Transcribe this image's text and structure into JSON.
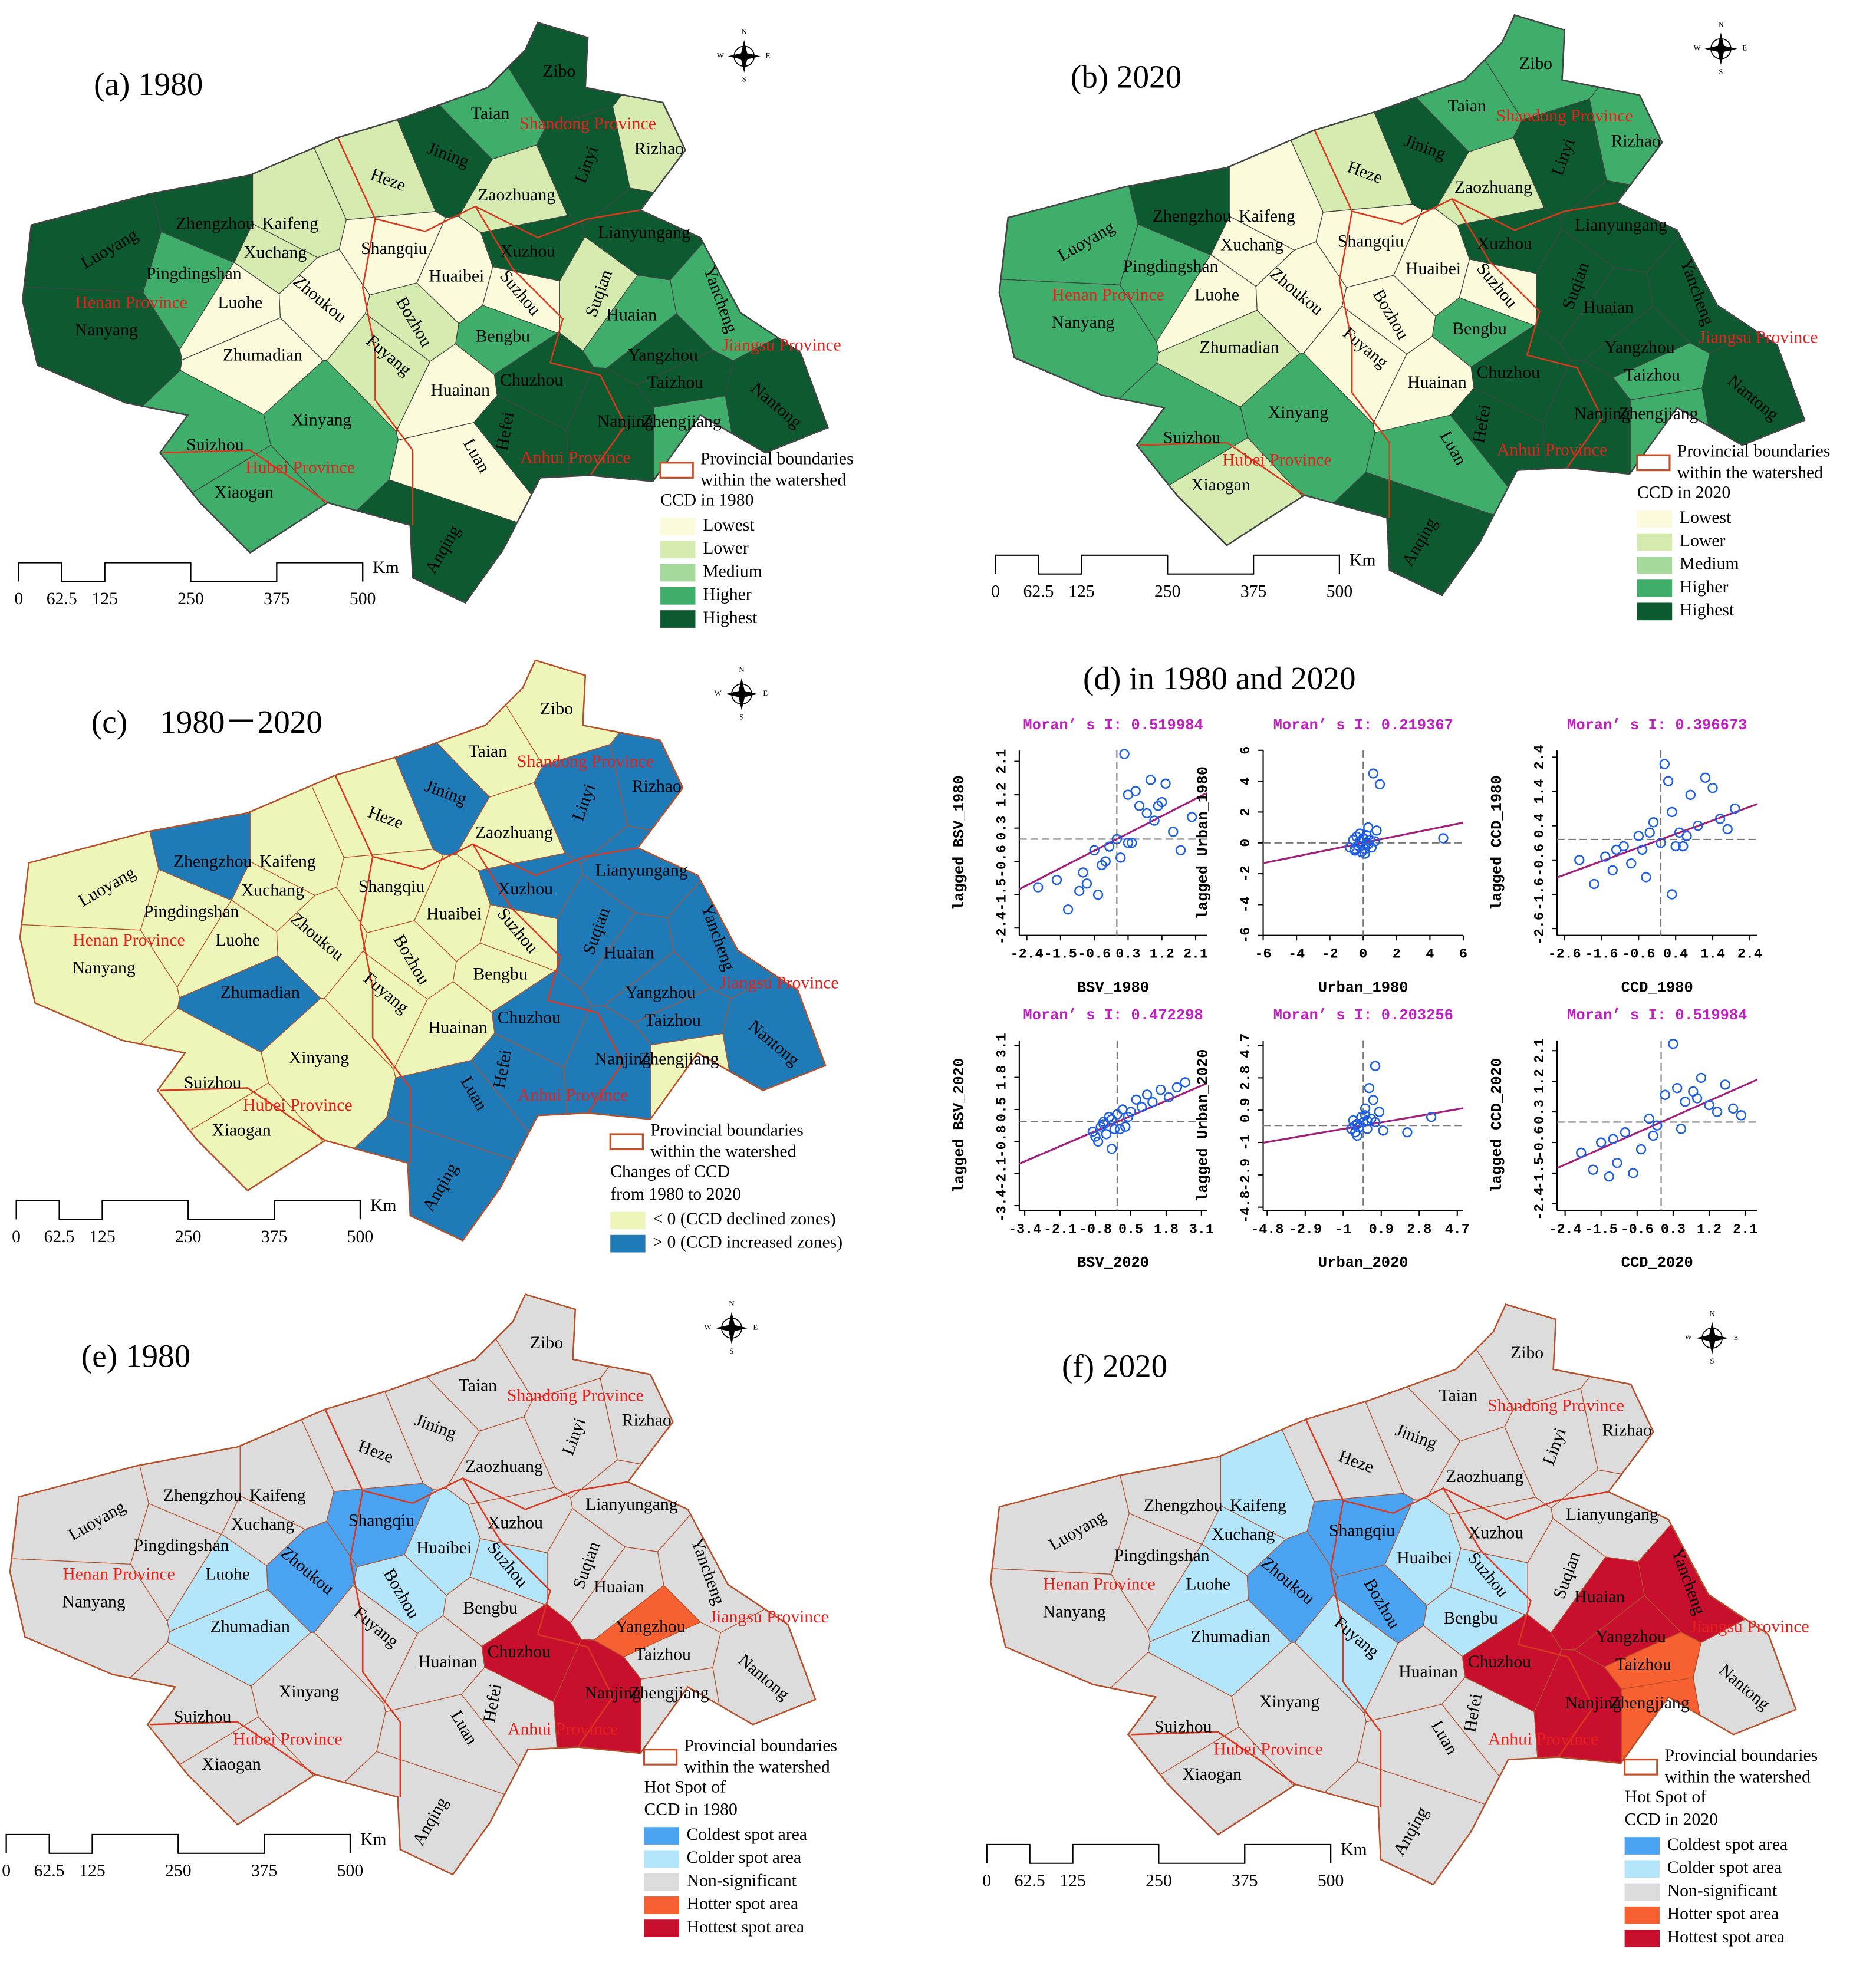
{
  "figure": {
    "cities": [
      "Zibo",
      "Taian",
      "Jining",
      "Heze",
      "Rizhao",
      "Linyi",
      "Zaozhuang",
      "Zhengzhou",
      "Kaifeng",
      "Luoyang",
      "Xuchang",
      "Shangqiu",
      "Xuzhou",
      "Lianyungang",
      "Pingdingshan",
      "Zhoukou",
      "Huaibei",
      "Suzhou",
      "Suqian",
      "Yancheng",
      "Luohe",
      "Bozhou",
      "Huaian",
      "Nanyang",
      "Zhumadian",
      "Fuyang",
      "Bengbu",
      "Yangzhou",
      "Taizhou",
      "Chuzhou",
      "Huainan",
      "Hefei",
      "Nantong",
      "Zhengjiang",
      "Nanjing",
      "Xinyang",
      "Suizhou",
      "Luan",
      "Xiaogan",
      "Anqing"
    ],
    "provinces": [
      "Shandong Province",
      "Henan Province",
      "Jiangsu Province",
      "Anhui Province",
      "Hubei Province"
    ],
    "boundary_legend": [
      "Provincial boundaries",
      "within the watershed"
    ],
    "compass": [
      "N",
      "E",
      "S",
      "W"
    ],
    "scale_bar": {
      "ticks": [
        0,
        62.5,
        125,
        250,
        375,
        500
      ],
      "unit": "Km"
    },
    "maps": [
      {
        "title": "(a) 1980",
        "legend_title": [
          "CCD in 1980"
        ],
        "legend": [
          {
            "label": "Lowest",
            "color": "#fbfbdc"
          },
          {
            "label": "Lower",
            "color": "#d5ebb0"
          },
          {
            "label": "Medium",
            "color": "#a5d89b"
          },
          {
            "label": "Higher",
            "color": "#3fae6a"
          },
          {
            "label": "Highest",
            "color": "#0d5a30"
          }
        ],
        "region_class": [
          4,
          3,
          4,
          1,
          1,
          4,
          1,
          4,
          1,
          4,
          1,
          0,
          4,
          4,
          3,
          0,
          0,
          0,
          1,
          3,
          0,
          1,
          3,
          4,
          0,
          1,
          3,
          4,
          4,
          4,
          0,
          4,
          4,
          3,
          4,
          3,
          3,
          0,
          3,
          4
        ]
      },
      {
        "title": "(b) 2020",
        "legend_title": [
          "CCD in 2020"
        ],
        "legend": [
          {
            "label": "Lowest",
            "color": "#fbfbdc"
          },
          {
            "label": "Lower",
            "color": "#d5ebb0"
          },
          {
            "label": "Medium",
            "color": "#a5d89b"
          },
          {
            "label": "Higher",
            "color": "#3fae6a"
          },
          {
            "label": "Highest",
            "color": "#0d5a30"
          }
        ],
        "region_class": [
          3,
          3,
          4,
          1,
          3,
          4,
          1,
          4,
          0,
          3,
          0,
          0,
          4,
          4,
          3,
          0,
          0,
          0,
          4,
          4,
          0,
          0,
          4,
          3,
          1,
          0,
          3,
          4,
          3,
          4,
          0,
          4,
          4,
          3,
          4,
          3,
          3,
          3,
          1,
          4
        ]
      },
      {
        "title": "(c)    1980－2020",
        "legend_title": [
          "Changes of CCD",
          "from 1980 to 2020"
        ],
        "legend": [
          {
            "label": "< 0 (CCD declined zones)",
            "color": "#eef5b8"
          },
          {
            "label": "> 0 (CCD increased zones)",
            "color": "#1f7ab8"
          }
        ],
        "region_class": [
          0,
          0,
          1,
          0,
          1,
          1,
          0,
          1,
          0,
          0,
          0,
          0,
          1,
          1,
          0,
          0,
          0,
          0,
          1,
          1,
          0,
          0,
          1,
          0,
          1,
          0,
          0,
          1,
          1,
          1,
          0,
          1,
          1,
          0,
          1,
          0,
          0,
          1,
          0,
          1
        ]
      },
      {
        "title": "(e) 1980",
        "legend_title": [
          "Hot Spot of",
          "CCD in 1980"
        ],
        "legend": [
          {
            "label": "Coldest spot area",
            "color": "#4aa3f0"
          },
          {
            "label": "Colder spot area",
            "color": "#b3e5fb"
          },
          {
            "label": "Non-significant",
            "color": "#dcdcdc"
          },
          {
            "label": "Hotter spot area",
            "color": "#f76030"
          },
          {
            "label": "Hottest spot area",
            "color": "#c8102e"
          }
        ],
        "region_class": [
          2,
          2,
          2,
          2,
          2,
          2,
          2,
          2,
          2,
          2,
          2,
          0,
          2,
          2,
          2,
          0,
          1,
          1,
          2,
          2,
          1,
          1,
          2,
          2,
          1,
          2,
          2,
          3,
          2,
          4,
          2,
          2,
          2,
          2,
          4,
          2,
          2,
          2,
          2,
          2
        ]
      },
      {
        "title": "(f) 2020",
        "legend_title": [
          "Hot Spot of",
          "CCD in 2020"
        ],
        "legend": [
          {
            "label": "Coldest spot area",
            "color": "#4aa3f0"
          },
          {
            "label": "Colder spot area",
            "color": "#b3e5fb"
          },
          {
            "label": "Non-significant",
            "color": "#dcdcdc"
          },
          {
            "label": "Hotter spot area",
            "color": "#f76030"
          },
          {
            "label": "Hottest spot area",
            "color": "#c8102e"
          }
        ],
        "region_class": [
          2,
          2,
          2,
          2,
          2,
          2,
          2,
          2,
          1,
          2,
          1,
          0,
          2,
          2,
          2,
          0,
          1,
          1,
          2,
          4,
          1,
          0,
          4,
          2,
          1,
          1,
          1,
          4,
          3,
          4,
          2,
          2,
          2,
          3,
          4,
          2,
          2,
          2,
          2,
          2
        ]
      }
    ]
  },
  "scatter_title": "(d) in 1980 and 2020",
  "chart_data": [
    {
      "type": "scatter",
      "title": "Moran’ s I: 0.519984",
      "x_label": "BSV_1980",
      "y_label": "lagged BSV_1980",
      "color": "#1f5fe0",
      "trendline": {
        "slope": 0.519984,
        "color": "#a0207a"
      },
      "xlim": [
        -2.6,
        2.4
      ],
      "ylim": [
        -2.6,
        2.4
      ],
      "xticks": [
        -2.4,
        -1.5,
        -0.6,
        0.3,
        1.2,
        2.1
      ],
      "yticks": [
        -2.4,
        -1.5,
        -0.6,
        0.3,
        1.2,
        2.1
      ],
      "x": [
        -2.1,
        -1.6,
        -1.3,
        -1,
        -0.8,
        -0.6,
        -0.5,
        -0.3,
        -0.2,
        0,
        0.1,
        0.2,
        0.3,
        0.4,
        0.5,
        0.6,
        0.8,
        0.9,
        1,
        1.1,
        1.2,
        1.3,
        1.5,
        1.7,
        2,
        0.3,
        -0.9,
        -0.4
      ],
      "y": [
        -1.3,
        -1.1,
        -1.9,
        -1.4,
        -1.2,
        -0.3,
        -1.5,
        -0.6,
        -0.2,
        0,
        -0.5,
        2.3,
        1.2,
        -0.1,
        1.3,
        0.9,
        0.7,
        1.6,
        0.5,
        0.9,
        1,
        1.5,
        0.2,
        -0.3,
        0.6,
        -0.1,
        -0.9,
        -0.7
      ]
    },
    {
      "type": "scatter",
      "title": "Moran’ s I: 0.219367",
      "x_label": "Urban_1980",
      "y_label": "lagged Urban_1980",
      "color": "#1f5fe0",
      "trendline": {
        "slope": 0.219367,
        "color": "#a0207a"
      },
      "xlim": [
        -6,
        6
      ],
      "ylim": [
        -6,
        6
      ],
      "xticks": [
        -6,
        -4,
        -2,
        0,
        2,
        4,
        6
      ],
      "yticks": [
        -6,
        -4,
        -2,
        0,
        2,
        4,
        6
      ],
      "x": [
        -0.8,
        -0.6,
        -0.5,
        -0.4,
        -0.3,
        -0.2,
        -0.1,
        0,
        0.1,
        0.2,
        0.3,
        0.4,
        0.6,
        0.8,
        1,
        0.5,
        -0.2,
        0.1,
        0.3,
        4.8,
        0.7,
        -0.5,
        0.2
      ],
      "y": [
        -0.3,
        0.2,
        -0.5,
        0.4,
        -0.2,
        0.1,
        -0.6,
        0.3,
        -0.4,
        0.5,
        -0.1,
        0.2,
        4.5,
        0.8,
        3.8,
        -0.3,
        0.6,
        -0.7,
        1,
        0.3,
        0.1,
        -0.4,
        0
      ]
    },
    {
      "type": "scatter",
      "title": "Moran’ s I: 0.396673",
      "x_label": "CCD_1980",
      "y_label": "lagged CCD_1980",
      "color": "#1f5fe0",
      "trendline": {
        "slope": 0.396673,
        "color": "#a0207a"
      },
      "xlim": [
        -2.8,
        2.6
      ],
      "ylim": [
        -2.8,
        2.6
      ],
      "xticks": [
        -2.6,
        -1.6,
        -0.6,
        0.4,
        1.4,
        2.4
      ],
      "yticks": [
        -2.6,
        -1.6,
        -0.6,
        0.4,
        1.4,
        2.4
      ],
      "x": [
        -2.2,
        -1.8,
        -1.5,
        -1.3,
        -1,
        -0.8,
        -0.6,
        -0.5,
        -0.3,
        -0.2,
        0,
        0.1,
        0.2,
        0.3,
        0.4,
        0.5,
        0.7,
        0.8,
        1,
        1.2,
        1.4,
        1.6,
        1.8,
        2,
        -0.4,
        0.3,
        0.6,
        -1.2
      ],
      "y": [
        -0.6,
        -1.3,
        -0.5,
        -0.9,
        -0.2,
        -0.7,
        0.1,
        -0.3,
        0.2,
        0.5,
        -0.1,
        2.2,
        1.7,
        -1.6,
        -0.2,
        0.2,
        0.1,
        1.3,
        0.4,
        1.8,
        1.5,
        0.6,
        0.3,
        0.9,
        -1.1,
        0.8,
        -0.2,
        -0.3
      ]
    },
    {
      "type": "scatter",
      "title": "Moran’ s I: 0.472298",
      "x_label": "BSV_2020",
      "y_label": "lagged BSV_2020",
      "color": "#1f5fe0",
      "trendline": {
        "slope": 0.472298,
        "color": "#a0207a"
      },
      "xlim": [
        -3.6,
        3.3
      ],
      "ylim": [
        -3.6,
        3.3
      ],
      "xticks": [
        -3.4,
        -2.1,
        -0.8,
        0.5,
        1.8,
        3.1
      ],
      "yticks": [
        -3.4,
        -2.1,
        -0.8,
        0.5,
        1.8,
        3.1
      ],
      "x": [
        -0.9,
        -0.8,
        -0.6,
        -0.5,
        -0.4,
        -0.3,
        -0.2,
        -0.1,
        0,
        0.2,
        0.3,
        0.5,
        0.7,
        0.9,
        1.1,
        1.3,
        1.6,
        1.9,
        2.2,
        2.5,
        -0.7,
        -0.2,
        0.4,
        0.1,
        -0.5
      ],
      "y": [
        -0.4,
        -0.6,
        -0.2,
        -0.1,
        -0.5,
        0.2,
        0.1,
        -0.3,
        0.3,
        0.5,
        -0.2,
        0.4,
        0.9,
        0.6,
        1.1,
        0.8,
        1.3,
        1,
        1.4,
        1.6,
        -0.8,
        -1.1,
        0.2,
        -0.3,
        0
      ]
    },
    {
      "type": "scatter",
      "title": "Moran’ s I: 0.203256",
      "x_label": "Urban_2020",
      "y_label": "lagged Urban_2020",
      "color": "#1f5fe0",
      "trendline": {
        "slope": 0.203256,
        "color": "#a0207a"
      },
      "xlim": [
        -5,
        5
      ],
      "ylim": [
        -5,
        5
      ],
      "xticks": [
        -4.8,
        -2.9,
        -1,
        0.9,
        2.8,
        4.7
      ],
      "yticks": [
        -4.8,
        -2.9,
        -1,
        0.9,
        2.8,
        4.7
      ],
      "x": [
        -0.6,
        -0.5,
        -0.4,
        -0.3,
        -0.2,
        -0.1,
        0,
        0.1,
        0.2,
        0.3,
        0.4,
        0.5,
        0.6,
        0.8,
        1,
        2.2,
        3.4,
        -0.3,
        0.2,
        0.1,
        -0.4,
        0.6
      ],
      "y": [
        -0.2,
        0.3,
        -0.4,
        0.1,
        -0.1,
        0.5,
        0.2,
        1,
        0.3,
        2.2,
        0.4,
        1.5,
        3.5,
        0.8,
        -0.3,
        -0.4,
        0.5,
        -0.6,
        -0.2,
        0.6,
        0,
        0.2
      ]
    },
    {
      "type": "scatter",
      "title": "Moran’ s I: 0.519984",
      "x_label": "CCD_2020",
      "y_label": "lagged CCD_2020",
      "color": "#1f5fe0",
      "trendline": {
        "slope": 0.519984,
        "color": "#a0207a"
      },
      "xlim": [
        -2.6,
        2.4
      ],
      "ylim": [
        -2.6,
        2.4
      ],
      "xticks": [
        -2.4,
        -1.5,
        -0.6,
        0.3,
        1.2,
        2.1
      ],
      "yticks": [
        -2.4,
        -1.5,
        -0.6,
        0.3,
        1.2,
        2.1
      ],
      "x": [
        -2,
        -1.7,
        -1.5,
        -1.3,
        -1.1,
        -0.9,
        -0.7,
        -0.5,
        -0.3,
        -0.1,
        0.1,
        0.3,
        0.4,
        0.6,
        0.8,
        1,
        1.2,
        1.4,
        1.6,
        1.8,
        2,
        -0.2,
        0.5,
        -1.2,
        0.9
      ],
      "y": [
        -0.9,
        -1.4,
        -0.6,
        -1.6,
        -1.2,
        -0.3,
        -1.5,
        -0.8,
        0.1,
        -0.1,
        0.8,
        2.3,
        1,
        0.6,
        0.9,
        1.3,
        0.5,
        0.3,
        1.1,
        0.4,
        0.2,
        -0.4,
        -0.2,
        -0.5,
        0.7
      ]
    }
  ]
}
